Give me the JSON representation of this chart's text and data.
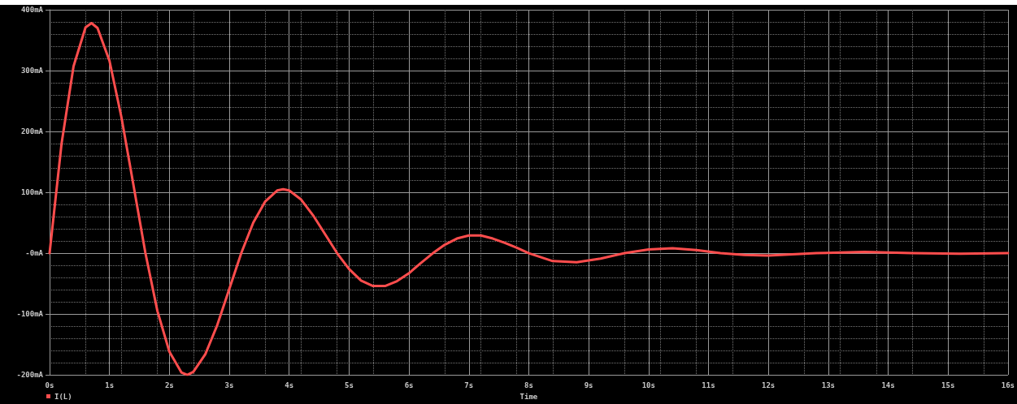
{
  "chart_data": {
    "type": "line",
    "xlabel": "Time",
    "legend": "bottom left",
    "grid": true,
    "marker": "none",
    "line_style": "solid",
    "xlim": [
      0,
      16
    ],
    "ylim": [
      -200,
      400
    ],
    "xticks": [
      {
        "value": 0,
        "label": "0s"
      },
      {
        "value": 1,
        "label": "1s"
      },
      {
        "value": 2,
        "label": "2s"
      },
      {
        "value": 3,
        "label": "3s"
      },
      {
        "value": 4,
        "label": "4s"
      },
      {
        "value": 5,
        "label": "5s"
      },
      {
        "value": 6,
        "label": "6s"
      },
      {
        "value": 7,
        "label": "7s"
      },
      {
        "value": 8,
        "label": "8s"
      },
      {
        "value": 9,
        "label": "9s"
      },
      {
        "value": 10,
        "label": "10s"
      },
      {
        "value": 11,
        "label": "11s"
      },
      {
        "value": 12,
        "label": "12s"
      },
      {
        "value": 13,
        "label": "13s"
      },
      {
        "value": 14,
        "label": "14s"
      },
      {
        "value": 15,
        "label": "15s"
      },
      {
        "value": 16,
        "label": "16s"
      }
    ],
    "yticks": [
      {
        "value": -200,
        "label": "-200mA"
      },
      {
        "value": -100,
        "label": "-100mA"
      },
      {
        "value": 0,
        "label": "-0mA"
      },
      {
        "value": 100,
        "label": "100mA"
      },
      {
        "value": 200,
        "label": "200mA"
      },
      {
        "value": 300,
        "label": "300mA"
      },
      {
        "value": 400,
        "label": "400mA"
      }
    ],
    "series": [
      {
        "name": "I(L)",
        "color": "#ff4d4d",
        "x": [
          0,
          0.2,
          0.4,
          0.6,
          0.7,
          0.8,
          1.0,
          1.2,
          1.4,
          1.6,
          1.8,
          2.0,
          2.2,
          2.3,
          2.4,
          2.6,
          2.8,
          3.0,
          3.2,
          3.4,
          3.6,
          3.8,
          3.9,
          4.0,
          4.2,
          4.4,
          4.6,
          4.8,
          5.0,
          5.2,
          5.4,
          5.6,
          5.8,
          6.0,
          6.2,
          6.4,
          6.6,
          6.8,
          7.0,
          7.2,
          7.4,
          7.6,
          7.8,
          8.0,
          8.4,
          8.8,
          9.2,
          9.6,
          10.0,
          10.4,
          10.8,
          11.2,
          11.6,
          12.0,
          12.4,
          12.8,
          13.6,
          14.4,
          15.2,
          16
        ],
        "values": [
          0,
          180,
          307,
          371,
          378,
          370,
          316,
          223,
          112,
          0,
          -95,
          -162,
          -196,
          -200,
          -195,
          -166,
          -118,
          -59,
          0,
          50,
          85,
          103,
          105,
          103,
          88,
          62,
          31,
          0,
          -26,
          -45,
          -54,
          -54,
          -46,
          -33,
          -16,
          0,
          14,
          24,
          29,
          29,
          24,
          17,
          9,
          0,
          -13,
          -15,
          -9,
          0,
          6,
          8,
          5,
          0,
          -3,
          -4,
          -2,
          0,
          2,
          0,
          -1,
          0
        ]
      }
    ]
  }
}
